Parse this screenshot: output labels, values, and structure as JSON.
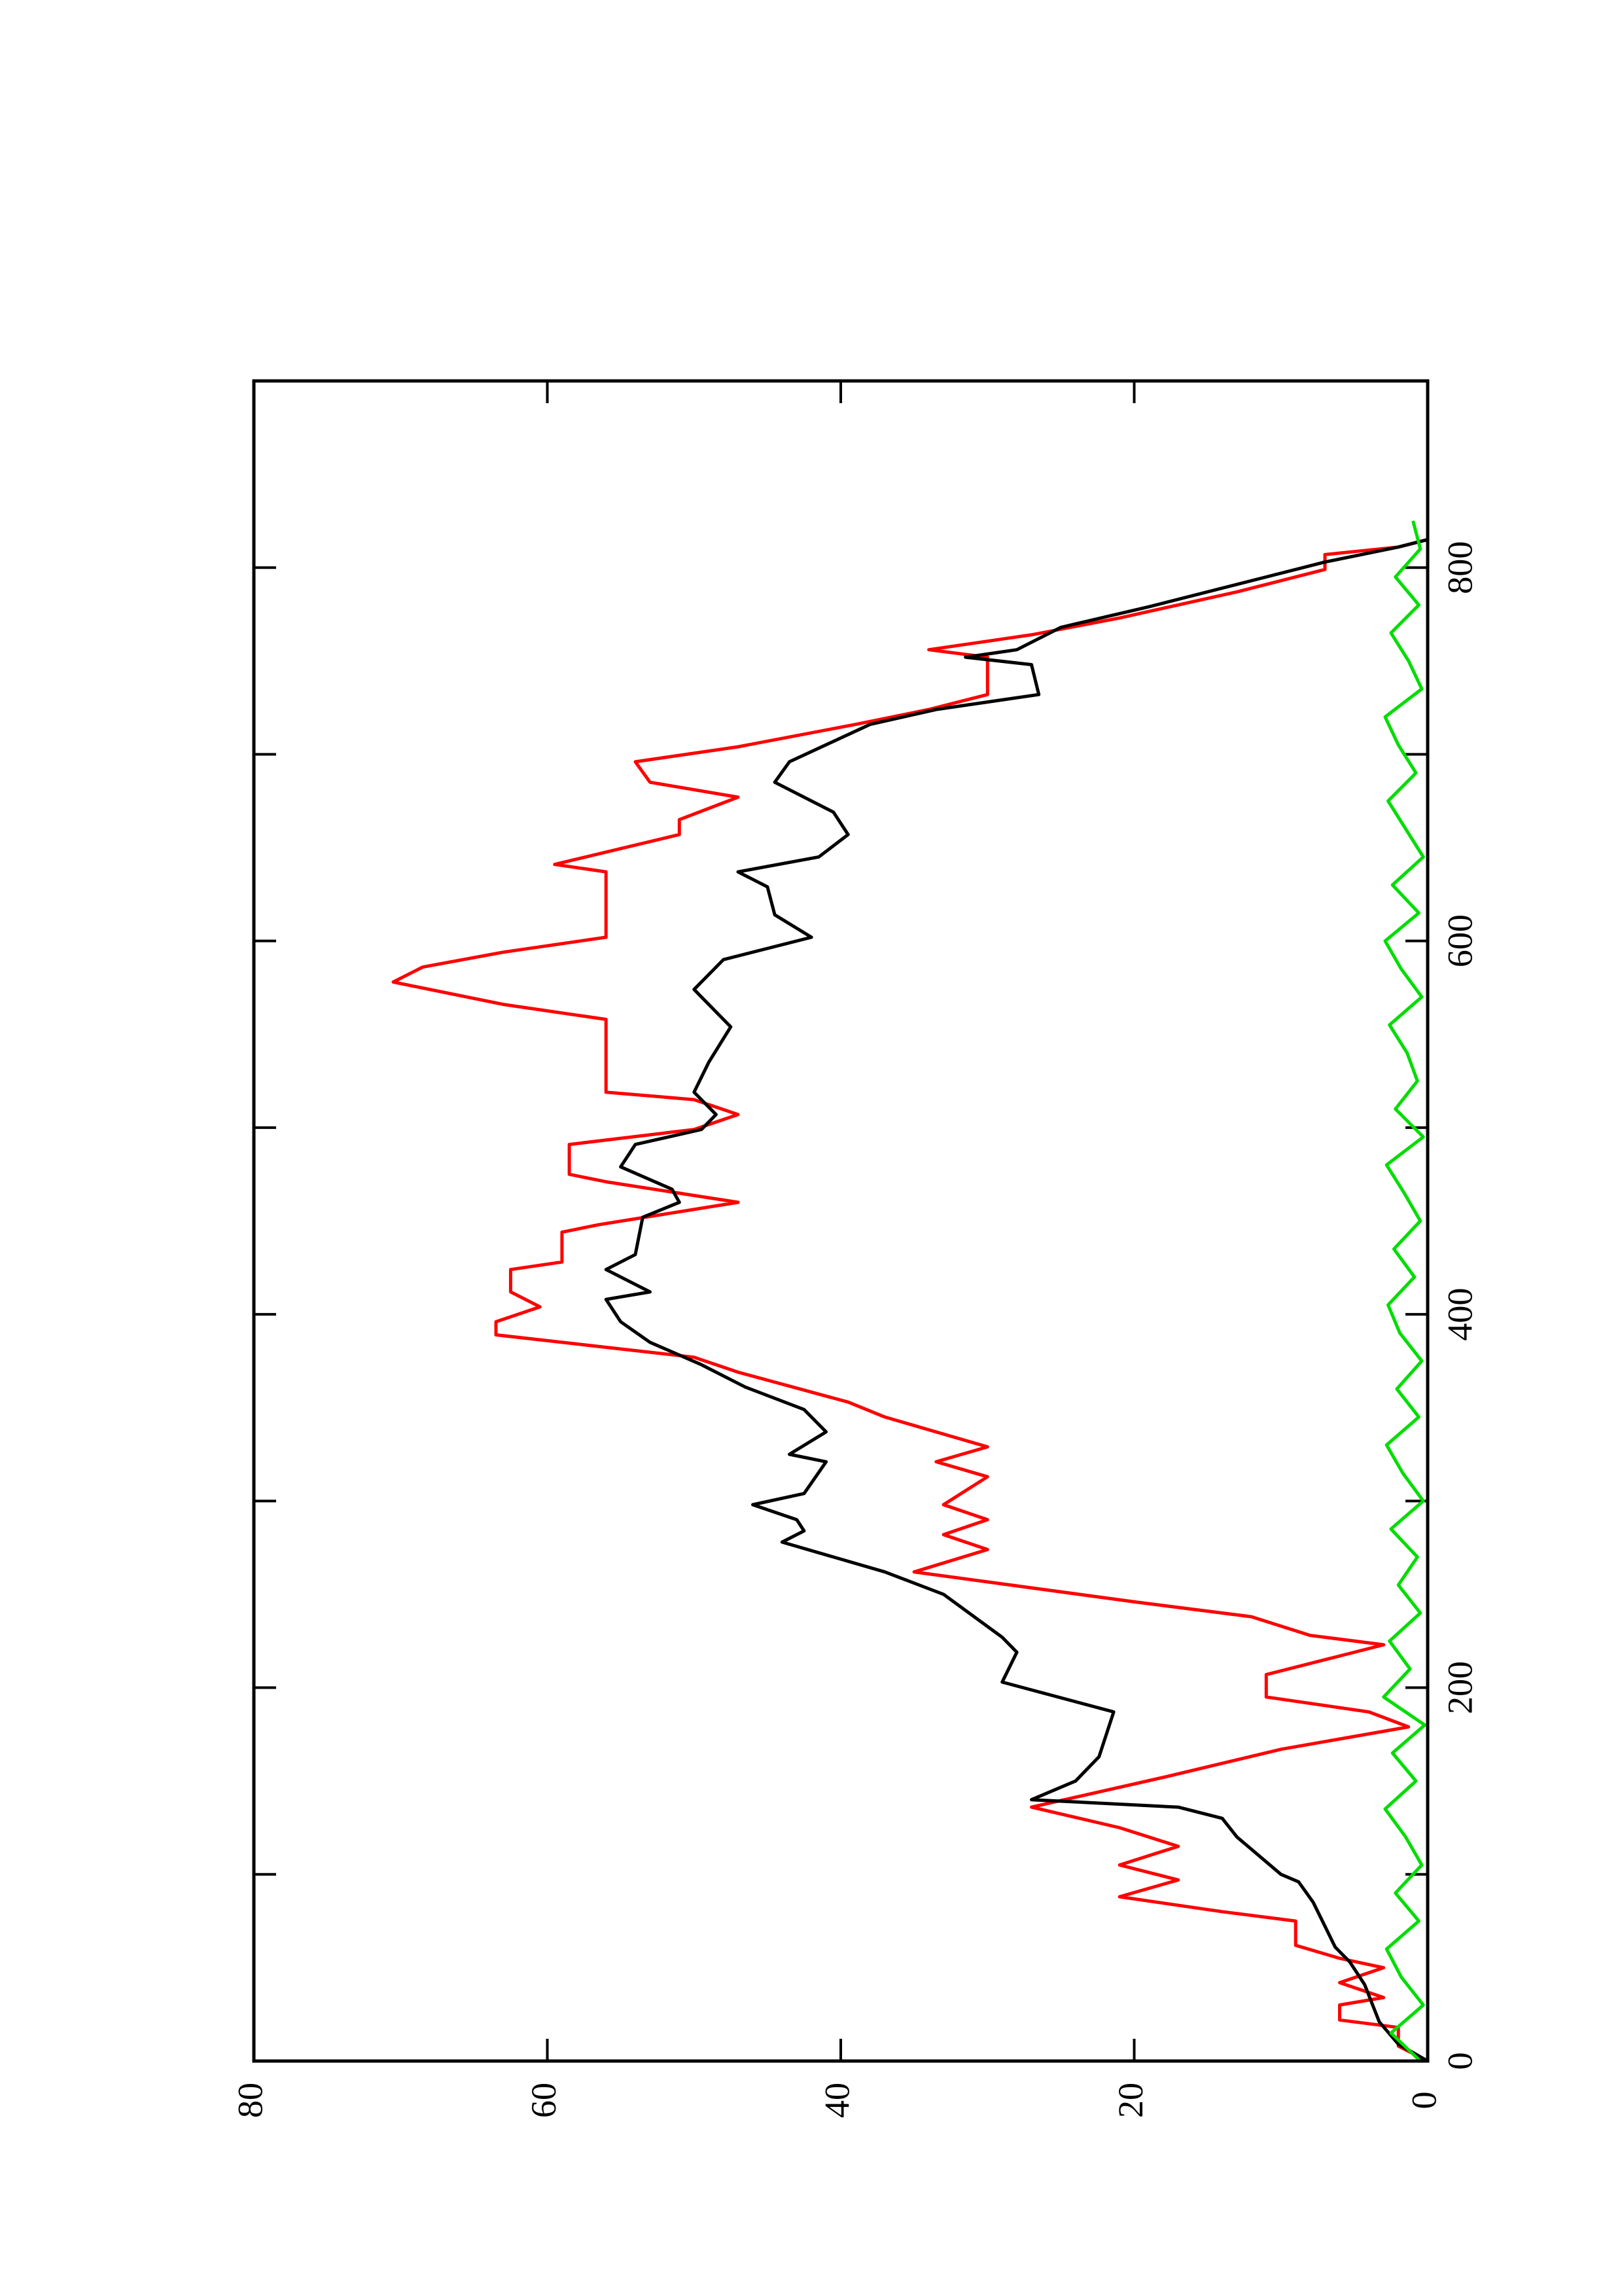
{
  "chart_data": {
    "type": "line",
    "orientation": "rotated",
    "xlim": [
      0,
      900
    ],
    "xticks": [
      0,
      200,
      400,
      600,
      800
    ],
    "xminor_ticks": [
      100,
      300,
      500,
      700
    ],
    "ylim": [
      0,
      80
    ],
    "yticks": [
      0,
      20,
      40,
      60,
      80
    ],
    "series": [
      {
        "color": "#ff0000",
        "x": [
          0,
          8,
          18,
          22,
          30,
          34,
          42,
          50,
          55,
          62,
          75,
          80,
          88,
          97,
          105,
          115,
          125,
          136,
          152,
          167,
          179,
          187,
          195,
          207,
          223,
          228,
          238,
          246,
          262,
          274,
          282,
          290,
          298,
          313,
          321,
          329,
          345,
          353,
          369,
          377,
          385,
          389,
          396,
          404,
          412,
          424,
          428,
          444,
          448,
          460,
          471,
          475,
          491,
          499,
          507,
          515,
          519,
          558,
          566,
          578,
          586,
          594,
          602,
          637,
          641,
          657,
          665,
          677,
          685,
          696,
          704,
          716,
          724,
          732,
          752,
          756,
          764,
          773,
          787,
          799,
          807,
          811,
          815
        ],
        "values": [
          0,
          2,
          2,
          6,
          6,
          3,
          6,
          3,
          6,
          9,
          9,
          14,
          21,
          17,
          21,
          17,
          21,
          27,
          18,
          10,
          1.3,
          4,
          11,
          11,
          3,
          8,
          12,
          20,
          35,
          30,
          33,
          30,
          33,
          30,
          33.5,
          30,
          37,
          39.5,
          47,
          50,
          59,
          63.5,
          63.5,
          60.5,
          62.5,
          62.5,
          59,
          59,
          56.5,
          47,
          56,
          58.5,
          58.5,
          50,
          47,
          50,
          56,
          56,
          63,
          70.5,
          68.5,
          63,
          56,
          56,
          59.5,
          51,
          51,
          47,
          53,
          54,
          47,
          39,
          34,
          30,
          30,
          34,
          27,
          21,
          13,
          7,
          7,
          2,
          0
        ]
      },
      {
        "color": "#000000",
        "x": [
          0,
          9,
          21,
          41,
          53,
          61,
          77,
          85,
          96,
          100,
          120,
          130,
          136,
          140,
          150,
          163,
          187,
          203,
          219,
          227,
          250,
          262,
          278,
          284,
          290,
          298,
          304,
          321,
          325,
          337,
          349,
          361,
          373,
          385,
          396,
          408,
          412,
          424,
          432,
          452,
          460,
          467,
          479,
          491,
          499,
          507,
          519,
          535,
          554,
          574,
          590,
          602,
          614,
          629,
          637,
          645,
          657,
          669,
          685,
          696,
          716,
          724,
          732,
          748,
          752,
          756,
          768,
          779,
          795,
          803,
          811,
          815
        ],
        "values": [
          0,
          2,
          3.3,
          4.3,
          5.3,
          6.3,
          7.3,
          7.8,
          8.8,
          10,
          13,
          14,
          17,
          27,
          24,
          22.4,
          21.4,
          29,
          28,
          29,
          33,
          37,
          44,
          42.5,
          43,
          46,
          42.5,
          41,
          43.5,
          41,
          42.5,
          46.5,
          49.5,
          53,
          55,
          56,
          53,
          56,
          54,
          53.5,
          51,
          51.5,
          55,
          54,
          49.5,
          48.5,
          50,
          49,
          47.5,
          50,
          48,
          42,
          44.5,
          45,
          47,
          41.5,
          39.5,
          40.5,
          44.5,
          43.5,
          38,
          33.5,
          26.5,
          27,
          31.5,
          28,
          25,
          19,
          11,
          7,
          2,
          0
        ]
      },
      {
        "color": "#00dd00",
        "x": [
          0,
          15,
          30,
          45,
          60,
          75,
          90,
          105,
          120,
          135,
          150,
          165,
          180,
          195,
          210,
          225,
          240,
          255,
          270,
          285,
          300,
          315,
          330,
          345,
          360,
          375,
          390,
          405,
          420,
          435,
          450,
          465,
          480,
          495,
          510,
          525,
          540,
          555,
          570,
          585,
          600,
          615,
          630,
          645,
          660,
          675,
          690,
          705,
          720,
          735,
          750,
          765,
          780,
          795,
          810,
          825
        ],
        "values": [
          0.5,
          2.5,
          0.3,
          1.8,
          2.8,
          0.6,
          2.2,
          0.4,
          1.5,
          2.9,
          0.8,
          2.4,
          0.2,
          3,
          1.2,
          2.6,
          0.5,
          2,
          0.7,
          2.5,
          0.3,
          1.7,
          2.8,
          0.6,
          2.1,
          0.4,
          1.9,
          2.7,
          0.9,
          2.3,
          0.5,
          1.6,
          2.8,
          0.3,
          2.2,
          0.7,
          1.4,
          2.6,
          0.4,
          1.8,
          2.9,
          0.6,
          2.4,
          0.3,
          1.5,
          2.7,
          0.8,
          2,
          2.9,
          0.4,
          1.3,
          2.5,
          0.6,
          2.2,
          0.5,
          1
        ]
      }
    ]
  }
}
